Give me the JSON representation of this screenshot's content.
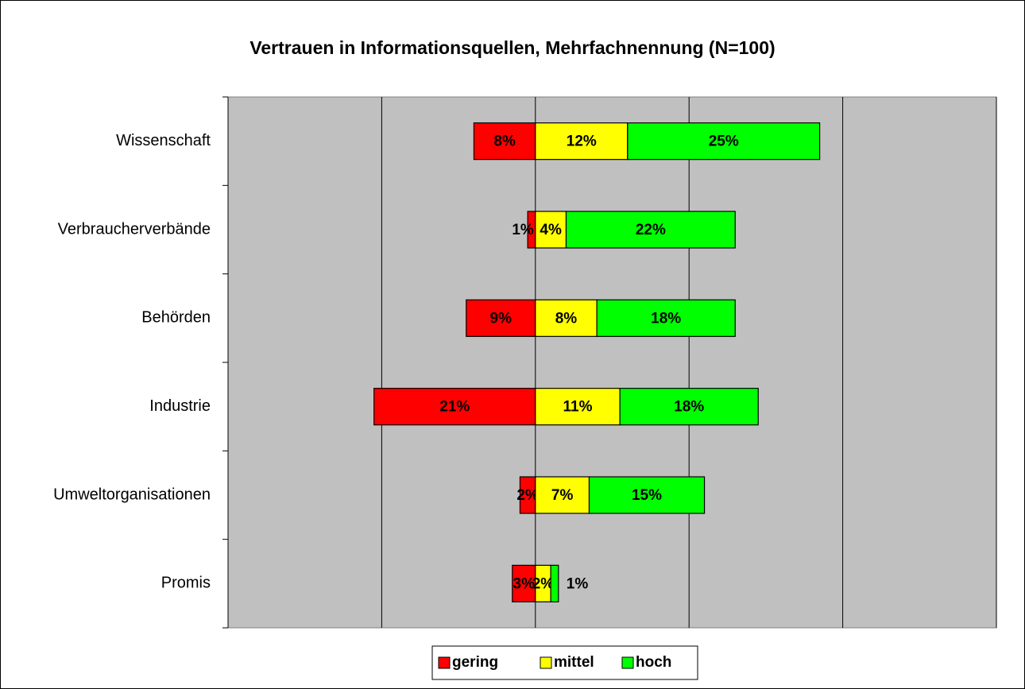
{
  "chart_data": {
    "type": "diverging_bar",
    "title": "Vertrauen in Informationsquellen, Mehrfachnennung (N=100)",
    "categories": [
      "Wissenschaft",
      "Verbraucherverbände",
      "Behörden",
      "Industrie",
      "Umweltorganisationen",
      "Promis"
    ],
    "series": [
      {
        "name": "gering",
        "color": "#ff0000",
        "values": [
          -8,
          -1,
          -9,
          -21,
          -2,
          -3
        ],
        "value_labels": [
          "8%",
          "1%",
          "9%",
          "21%",
          "2%",
          "3%"
        ]
      },
      {
        "name": "mittel",
        "color": "#ffff00",
        "values": [
          12,
          4,
          8,
          11,
          7,
          2
        ],
        "value_labels": [
          "12%",
          "4%",
          "8%",
          "11%",
          "7%",
          "2%"
        ]
      },
      {
        "name": "hoch",
        "color": "#00ff00",
        "values": [
          25,
          22,
          18,
          18,
          15,
          1
        ],
        "value_labels": [
          "25%",
          "22%",
          "18%",
          "18%",
          "15%",
          "1%"
        ]
      }
    ],
    "xlim": [
      -40,
      60
    ],
    "xticks": [
      -40,
      -20,
      0,
      20,
      40,
      60
    ],
    "grid": true,
    "legend": "bottom"
  }
}
